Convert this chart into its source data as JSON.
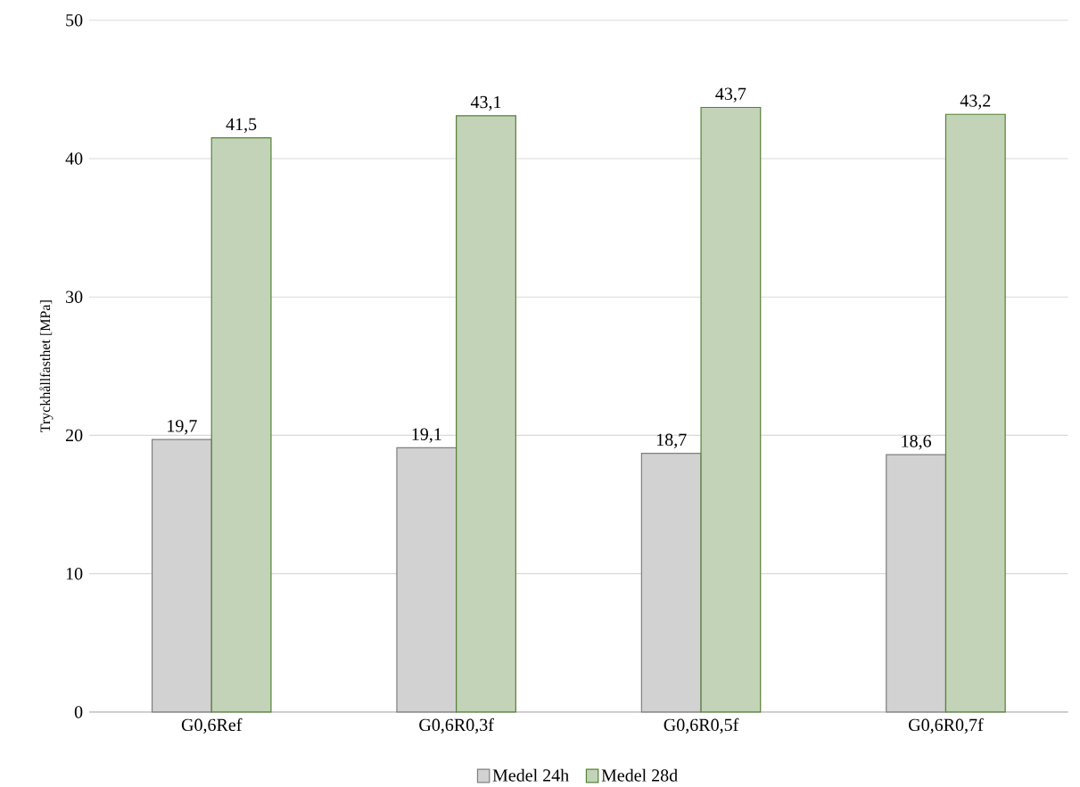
{
  "chart_data": {
    "type": "bar",
    "ylabel": "Tryckhållfasthet [MPa]",
    "categories": [
      "G0,6Ref",
      "G0,6R0,3f",
      "G0,6R0,5f",
      "G0,6R0,7f"
    ],
    "series": [
      {
        "name": "Medel 24h",
        "color": "#7f7f7f",
        "values": [
          19.7,
          19.1,
          18.7,
          18.6
        ],
        "value_labels": [
          "19,7",
          "19,1",
          "18,7",
          "18,6"
        ]
      },
      {
        "name": "Medel 28d",
        "color": "#548235",
        "values": [
          41.5,
          43.1,
          43.7,
          43.2
        ],
        "value_labels": [
          "41,5",
          "43,1",
          "43,7",
          "43,2"
        ]
      }
    ],
    "ylim": [
      0,
      50
    ],
    "yticks": [
      0,
      10,
      20,
      30,
      40,
      50
    ],
    "grid": "y",
    "legend": "bottom"
  }
}
